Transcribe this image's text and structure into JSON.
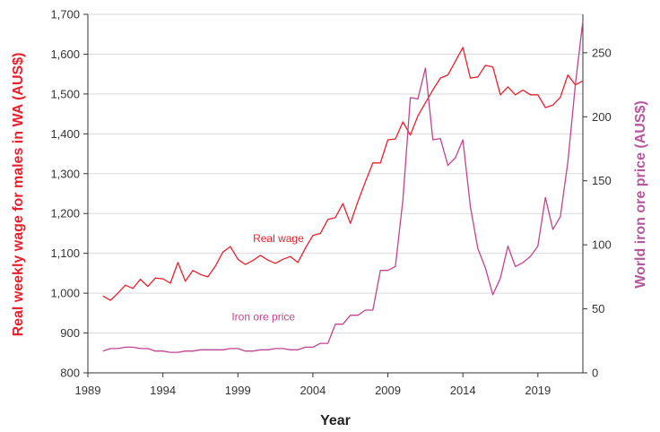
{
  "chart_data": {
    "type": "line",
    "title": "",
    "xlabel": "Year",
    "ylabel_left": "Real weekly wage for males in WA (AUS$)",
    "ylabel_right": "World iron ore price (AUS$)",
    "xlim": [
      1989,
      2022
    ],
    "ylim_left": [
      800,
      1700
    ],
    "ylim_right": [
      0,
      280
    ],
    "x_ticks": [
      1989,
      1994,
      1999,
      2004,
      2009,
      2014,
      2019
    ],
    "y_left_ticks": [
      800,
      900,
      1000,
      1100,
      1200,
      1300,
      1400,
      1500,
      1600,
      1700
    ],
    "y_left_tick_labels": [
      "800",
      "900",
      "1,000",
      "1,100",
      "1,200",
      "1,300",
      "1,400",
      "1,500",
      "1,600",
      "1,700"
    ],
    "y_right_ticks": [
      0,
      50,
      100,
      150,
      200,
      250
    ],
    "grid": "horizontal",
    "colors": {
      "wage": "#e8202e",
      "iron": "#c0448f",
      "left_axis_title": "#e8202e",
      "right_axis_title": "#b5579c"
    },
    "series": [
      {
        "name": "Real wage",
        "axis": "left",
        "label_at": [
          2001.7,
          1128
        ],
        "x": [
          1990,
          1990.5,
          1991,
          1991.5,
          1992,
          1992.5,
          1993,
          1993.5,
          1994,
          1994.5,
          1995,
          1995.5,
          1996,
          1996.5,
          1997,
          1997.5,
          1998,
          1998.5,
          1999,
          1999.5,
          2000,
          2000.5,
          2001,
          2001.5,
          2002,
          2002.5,
          2003,
          2003.5,
          2004,
          2004.5,
          2005,
          2005.5,
          2006,
          2006.5,
          2007,
          2007.5,
          2008,
          2008.5,
          2009,
          2009.5,
          2010,
          2010.5,
          2011,
          2011.5,
          2012,
          2012.5,
          2013,
          2013.5,
          2014,
          2014.5,
          2015,
          2015.5,
          2016,
          2016.5,
          2017,
          2017.5,
          2018,
          2018.5,
          2019,
          2019.5,
          2020,
          2020.5,
          2021,
          2021.5,
          2022
        ],
        "values": [
          993,
          982,
          1000,
          1020,
          1012,
          1035,
          1017,
          1038,
          1036,
          1025,
          1077,
          1030,
          1057,
          1047,
          1041,
          1068,
          1103,
          1117,
          1085,
          1072,
          1082,
          1095,
          1083,
          1075,
          1085,
          1092,
          1077,
          1113,
          1145,
          1150,
          1185,
          1190,
          1225,
          1175,
          1230,
          1280,
          1327,
          1327,
          1385,
          1387,
          1430,
          1397,
          1445,
          1478,
          1510,
          1540,
          1548,
          1582,
          1617,
          1540,
          1543,
          1572,
          1568,
          1498,
          1518,
          1498,
          1510,
          1498,
          1498,
          1466,
          1472,
          1492,
          1548,
          1523,
          1533
        ]
      },
      {
        "name": "Iron ore price",
        "axis": "right",
        "label_at": [
          2000.7,
          41
        ],
        "x": [
          1990,
          1990.5,
          1991,
          1991.5,
          1992,
          1992.5,
          1993,
          1993.5,
          1994,
          1994.5,
          1995,
          1995.5,
          1996,
          1996.5,
          1997,
          1997.5,
          1998,
          1998.5,
          1999,
          1999.5,
          2000,
          2000.5,
          2001,
          2001.5,
          2002,
          2002.5,
          2003,
          2003.5,
          2004,
          2004.5,
          2005,
          2005.5,
          2006,
          2006.5,
          2007,
          2007.5,
          2008,
          2008.5,
          2009,
          2009.5,
          2010,
          2010.5,
          2011,
          2011.5,
          2012,
          2012.5,
          2013,
          2013.5,
          2014,
          2014.5,
          2015,
          2015.5,
          2016,
          2016.5,
          2017,
          2017.5,
          2018,
          2018.5,
          2019,
          2019.5,
          2020,
          2020.5,
          2021,
          2021.5,
          2022
        ],
        "values": [
          17,
          19,
          19,
          20,
          20,
          19,
          19,
          17,
          17,
          16,
          16,
          17,
          17,
          18,
          18,
          18,
          18,
          19,
          19,
          17,
          17,
          18,
          18,
          19,
          19,
          18,
          18,
          20,
          20,
          23,
          23,
          38,
          38,
          45,
          45,
          49,
          49,
          80,
          80,
          83,
          135,
          215,
          214,
          238,
          182,
          183,
          162,
          168,
          182,
          130,
          97,
          82,
          61,
          74,
          99,
          83,
          86,
          91,
          99,
          137,
          112,
          122,
          165,
          225,
          275
        ]
      }
    ]
  }
}
